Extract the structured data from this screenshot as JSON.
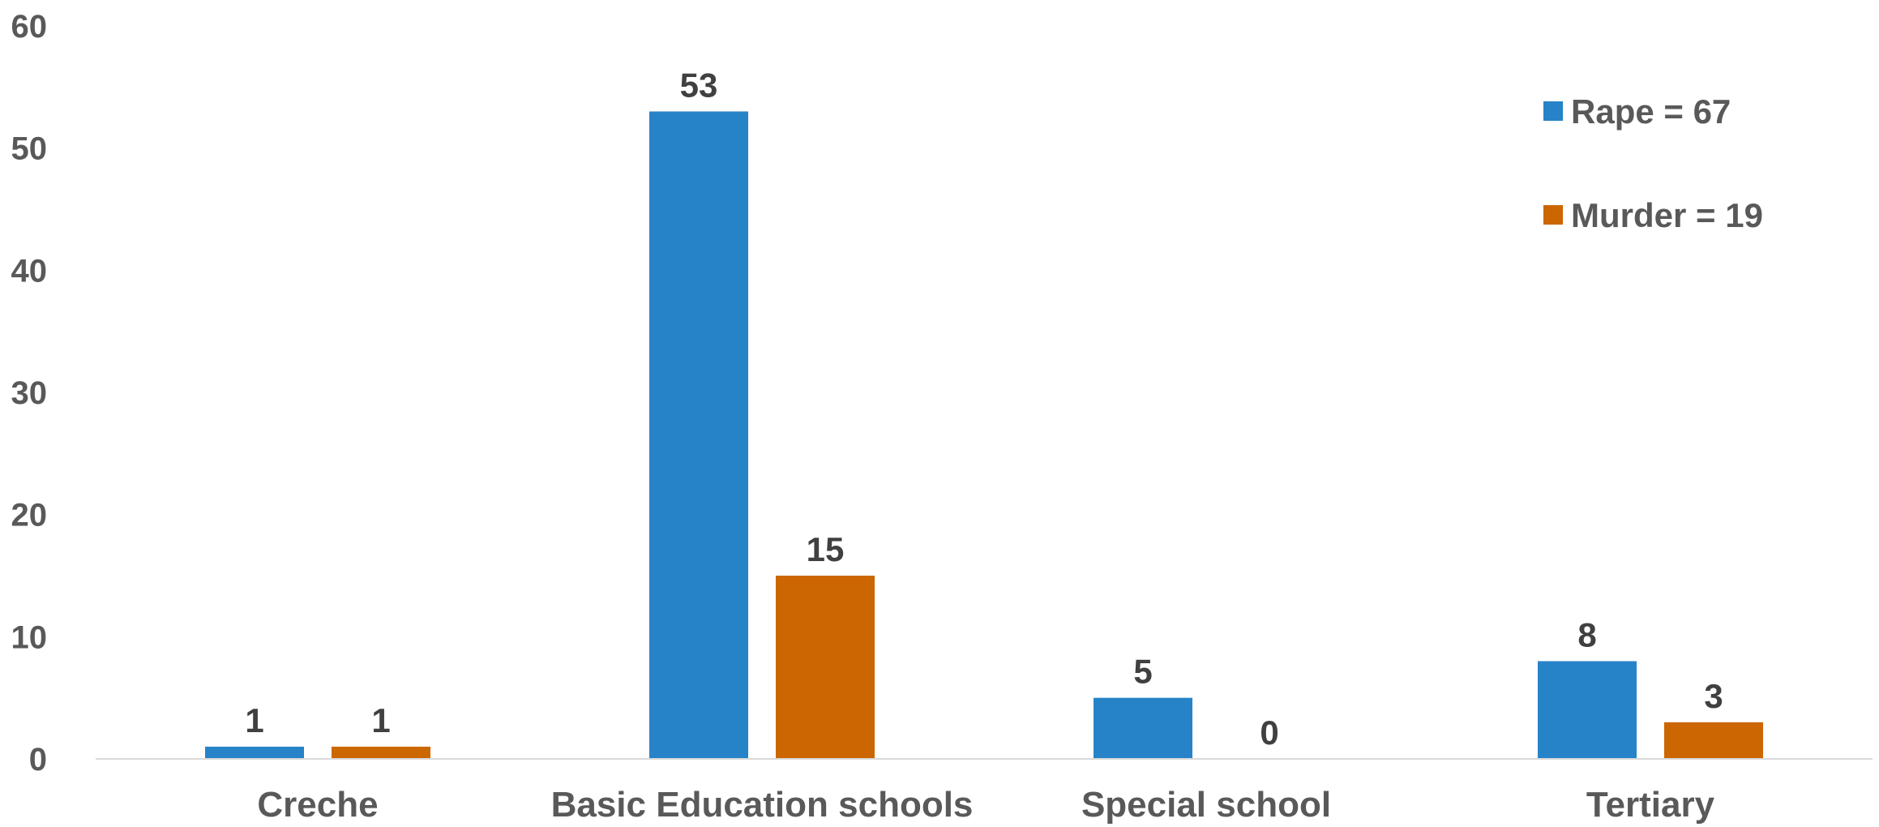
{
  "chart_data": {
    "type": "bar",
    "categories": [
      "Creche",
      "Basic Education schools",
      "Special school",
      "Tertiary"
    ],
    "series": [
      {
        "name": "Rape = 67",
        "color": "#2783C7",
        "values": [
          1,
          53,
          5,
          8
        ]
      },
      {
        "name": "Murder = 19",
        "color": "#CC6600",
        "values": [
          1,
          15,
          0,
          3
        ]
      }
    ],
    "ylim": [
      0,
      60
    ],
    "yticks": [
      0,
      10,
      20,
      30,
      40,
      50,
      60
    ],
    "legend_position": "top-right",
    "grid": false,
    "data_labels": true,
    "axis_color": "#D9D9D9"
  }
}
